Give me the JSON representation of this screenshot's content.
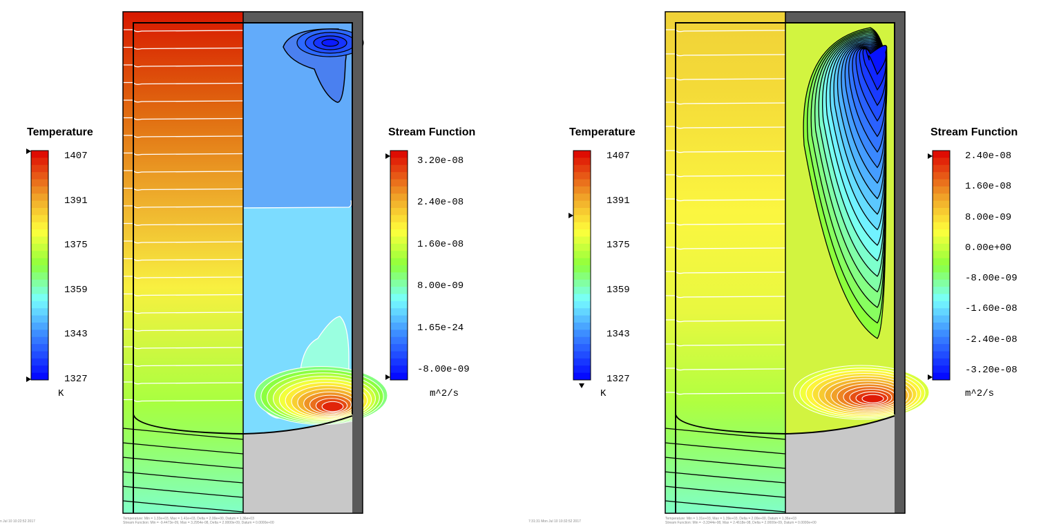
{
  "chart_data": [
    {
      "type": "heatmap",
      "timestamp": "n Jul 10 10:22:52 2017",
      "temperature": {
        "title": "Temperature",
        "unit": "K",
        "ticks": [
          "1407",
          "1391",
          "1375",
          "1359",
          "1343",
          "1327"
        ],
        "range": [
          1327,
          1407
        ]
      },
      "stream_function": {
        "title": "Stream Function",
        "unit": "m^2/s",
        "ticks": [
          "3.20e-08",
          "2.40e-08",
          "1.60e-08",
          "8.00e-09",
          "1.65e-24",
          "-8.00e-09"
        ],
        "range": [
          -8e-09,
          3.2e-08
        ]
      },
      "footer": [
        "Temperature: Min = 1.33e+03, Max = 1.41e+03, Delta = 2.00e+00, Datum = 1.36e+03",
        "Stream Function: Min = -9.4473e-09, Max = 3.2954e-08, Delta = 2.0000e-09, Datum = 0.0000e+00"
      ]
    },
    {
      "type": "heatmap",
      "timestamp": "7:31:31 Mon Jul 10 10:32:52 2017",
      "temperature": {
        "title": "Temperature",
        "unit": "K",
        "ticks": [
          "1407",
          "1391",
          "1375",
          "1359",
          "1343",
          "1327"
        ],
        "range": [
          1327,
          1407
        ]
      },
      "stream_function": {
        "title": "Stream Function",
        "unit": "m^2/s",
        "ticks": [
          "2.40e-08",
          "1.60e-08",
          "8.00e-09",
          "0.00e+00",
          "-8.00e-09",
          "-1.60e-08",
          "-2.40e-08",
          "-3.20e-08"
        ],
        "range": [
          -3.2e-08,
          2.4e-08
        ]
      },
      "footer": [
        "Temperature: Min = 1.31e+03, Max = 1.39e+03, Delta = 2.00e+00, Datum = 1.36e+03",
        "Stream Function: Min = -3.3344e-08, Max = 2.4618e-08, Delta = 2.0000e-09, Datum = 0.0000e+00"
      ]
    }
  ]
}
